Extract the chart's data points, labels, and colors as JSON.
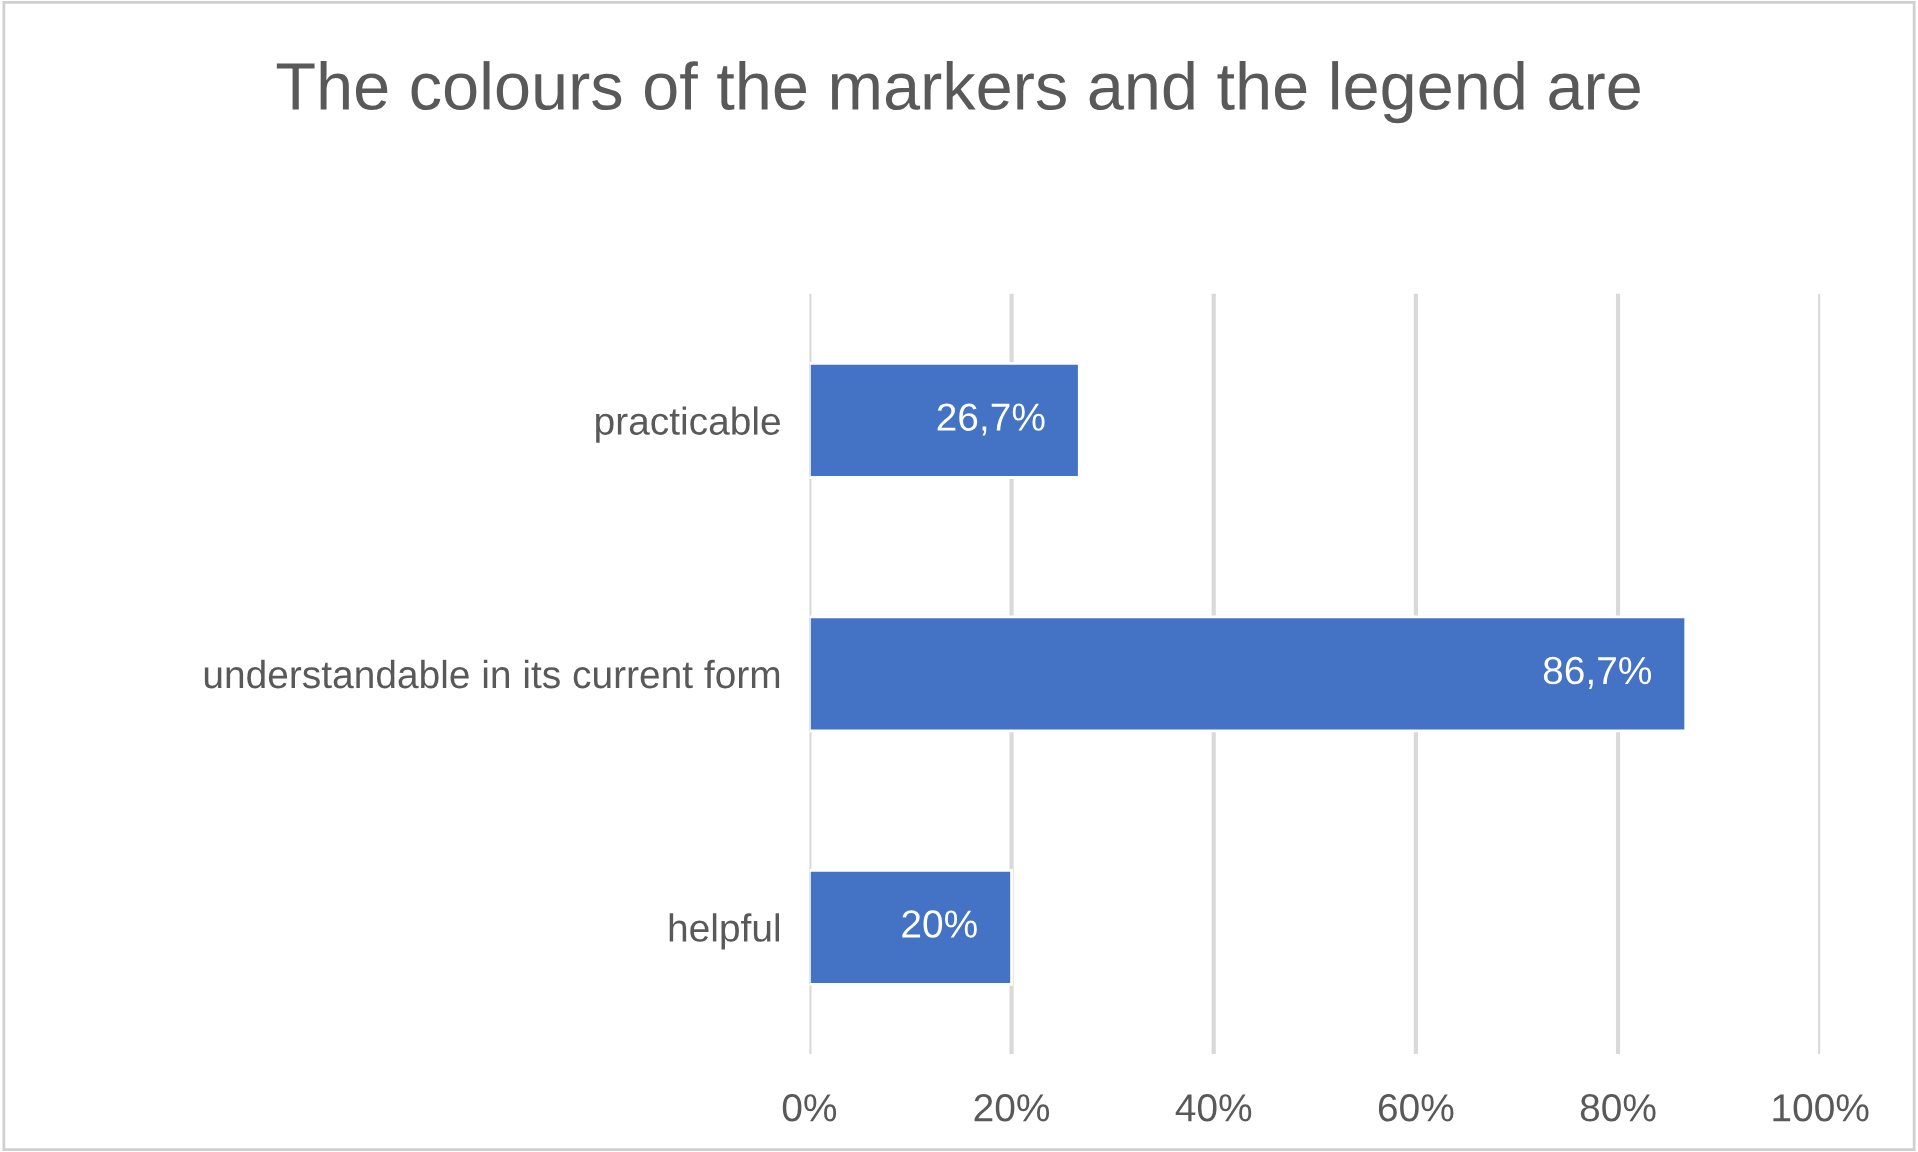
{
  "chart_data": {
    "type": "bar",
    "orientation": "horizontal",
    "title": "The colours of the markers and the legend are",
    "categories": [
      "practicable",
      "understandable in its current form",
      "helpful"
    ],
    "values": [
      26.7,
      86.7,
      20
    ],
    "value_labels": [
      "26,7%",
      "86,7%",
      "20%"
    ],
    "color": "#4472c4",
    "xlim": [
      0,
      100
    ],
    "xticks": [
      {
        "value": 0,
        "label": "0%"
      },
      {
        "value": 20,
        "label": "20%"
      },
      {
        "value": 40,
        "label": "40%"
      },
      {
        "value": 60,
        "label": "60%"
      },
      {
        "value": 80,
        "label": "80%"
      },
      {
        "value": 100,
        "label": "100%"
      }
    ],
    "grid": "x",
    "legend": false
  }
}
